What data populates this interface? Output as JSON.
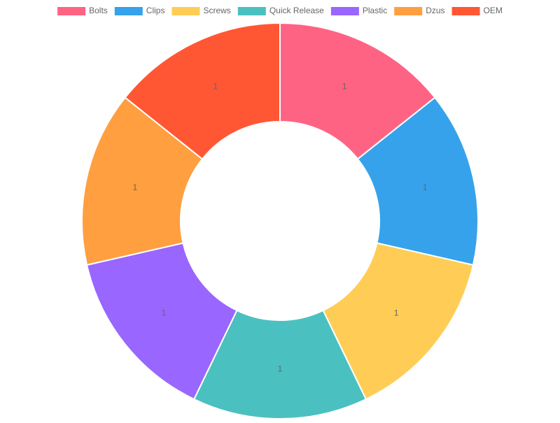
{
  "chart_data": {
    "type": "doughnut",
    "categories": [
      "Bolts",
      "Clips",
      "Screws",
      "Quick Release",
      "Plastic",
      "Dzus",
      "OEM"
    ],
    "values": [
      1,
      1,
      1,
      1,
      1,
      1,
      1
    ],
    "colors": [
      "#ff6384",
      "#36a2eb",
      "#ffcd56",
      "#4bc0c0",
      "#9966ff",
      "#ff9f40",
      "#ff5733"
    ],
    "legend": "top"
  }
}
